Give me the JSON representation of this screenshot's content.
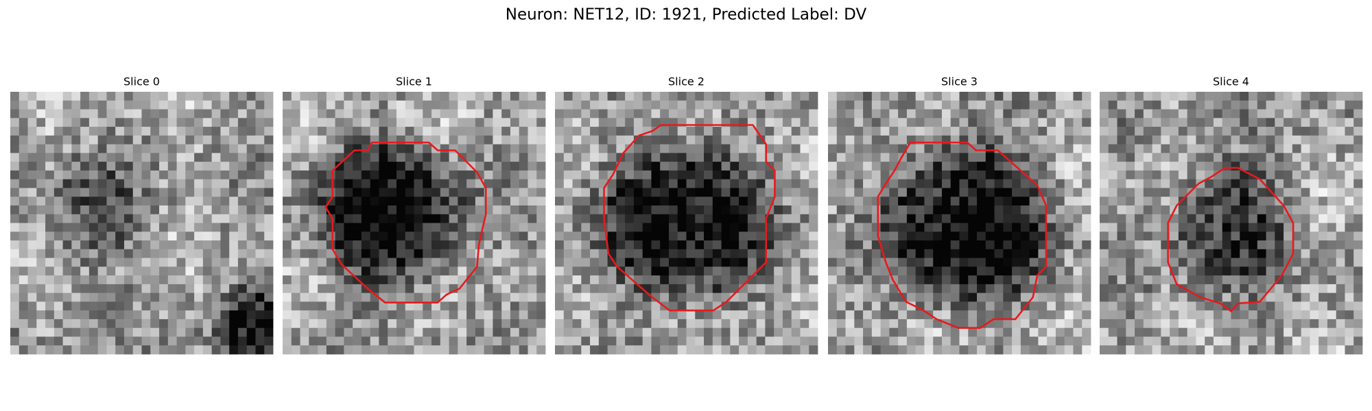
{
  "title": "Neuron: NET12, ID: 1921, Predicted Label: DV",
  "panels": [
    {
      "title": "Slice 0"
    },
    {
      "title": "Slice 1"
    },
    {
      "title": "Slice 2"
    },
    {
      "title": "Slice 3"
    },
    {
      "title": "Slice 4"
    }
  ]
}
